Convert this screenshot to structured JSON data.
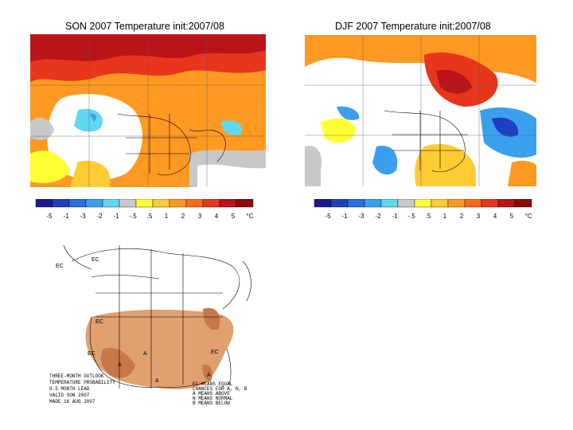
{
  "left_map": {
    "title": "SON 2007 Temperature init:2007/08"
  },
  "right_map": {
    "title": "DJF 2007 Temperature init:2007/08"
  },
  "colorbar": {
    "ticks": [
      "-5",
      "-1",
      "-3",
      "-2",
      "-1",
      "-.5",
      ".5",
      "1",
      "2",
      "3",
      "4",
      "5",
      "°C"
    ],
    "colors": [
      "#1b1b8e",
      "#1f3fc0",
      "#2a6ee0",
      "#3aa0ee",
      "#5fd8f0",
      "#c8c8c8",
      "#ffff33",
      "#ffcc33",
      "#ff9922",
      "#ff6a1a",
      "#e8361c",
      "#b8141a",
      "#8c0a0a"
    ]
  },
  "outlook": {
    "zone_labels": [
      "EC",
      "EC",
      "EC",
      "EC",
      "EC",
      "A",
      "A",
      "A",
      "A"
    ],
    "footer_left": [
      "THREE-MONTH OUTLOOK",
      "TEMPERATURE PROBABILITY",
      "0.5 MONTH LEAD",
      "VALID SON 2007",
      "MADE 16 AUG 2007"
    ],
    "footer_right": [
      "EC MEANS EQUAL",
      "CHANCES FOR A, N, B",
      "A MEANS ABOVE",
      "N MEANS NORMAL",
      "B MEANS BELOW"
    ]
  }
}
